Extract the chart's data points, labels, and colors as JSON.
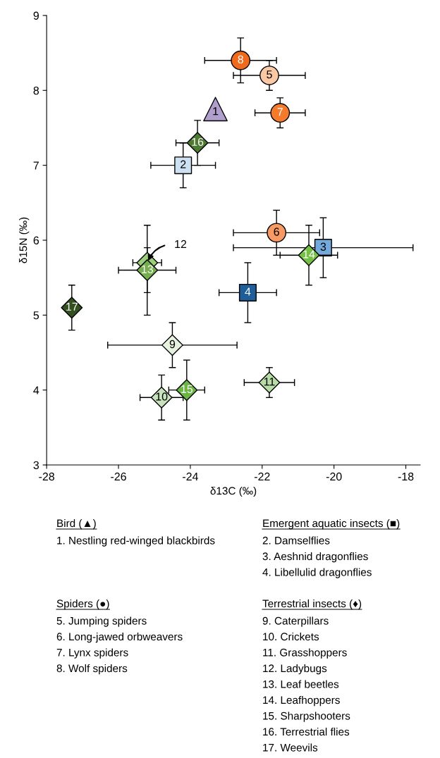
{
  "chart_data": {
    "type": "scatter",
    "xlabel": "δ13C (‰)",
    "ylabel": "δ15N (‰)",
    "xlim": [
      -28,
      -17.6
    ],
    "ylim": [
      3,
      9
    ],
    "xticks": [
      -28,
      -26,
      -24,
      -22,
      -20,
      -18
    ],
    "yticks": [
      3,
      4,
      5,
      6,
      7,
      8,
      9
    ],
    "series": [
      {
        "marker": "triangle",
        "x": [
          -23.3
        ],
        "values": [
          7.75
        ],
        "colors": [
          "#b09fcc"
        ],
        "errors": [
          null
        ],
        "xerrors": [
          null
        ]
      },
      {
        "marker": "square",
        "x": [
          -24.2,
          -20.3,
          -22.4
        ],
        "values": [
          7.0,
          5.9,
          5.3
        ],
        "colors": [
          "#cde1f3",
          "#74a9db",
          "#1f5e96"
        ],
        "errors": [
          0.3,
          0.4,
          0.4
        ],
        "xerrors": [
          0.9,
          2.5,
          0.8
        ]
      },
      {
        "marker": "circle",
        "x": [
          -21.8,
          -21.6,
          -21.5,
          -22.6
        ],
        "values": [
          8.2,
          6.1,
          7.7,
          8.4
        ],
        "colors": [
          "#fbc8a5",
          "#f79a64",
          "#f47a2c",
          "#f06a1e"
        ],
        "errors": [
          0.2,
          0.3,
          0.2,
          0.3
        ],
        "xerrors": [
          1.0,
          1.2,
          0.7,
          1.0
        ]
      },
      {
        "marker": "diamond",
        "x": [
          -24.5,
          -24.8,
          -21.8,
          -25.2,
          -25.2,
          -20.7,
          -24.1,
          -23.8,
          -27.3
        ],
        "values": [
          4.6,
          3.9,
          4.1,
          5.7,
          5.6,
          5.8,
          4.0,
          7.3,
          5.1
        ],
        "colors": [
          "#e6f2de",
          "#c8e2bc",
          "#b8dca6",
          "#9ccf7c",
          "#76ad4f",
          "#74c045",
          "#6cb443",
          "#4f7a34",
          "#34501f"
        ],
        "errors": [
          0.3,
          0.3,
          0.2,
          [
            5.3,
            5.9
          ],
          0.6,
          0.4,
          0.4,
          0.3,
          0.3
        ],
        "xerrors": [
          1.8,
          0.6,
          0.7,
          0.4,
          0.8,
          0.8,
          0.5,
          0.6,
          null
        ]
      }
    ],
    "annotations": [
      "Bird (▲)",
      "1. Nestling red-winged blackbirds",
      "Emergent aquatic insects (■)",
      "2. Damselflies",
      "3. Aeshnid dragonflies",
      "4. Libellulid dragonflies",
      "Spiders (●)",
      "5. Jumping spiders",
      "6. Long-jawed orbweavers",
      "7. Lynx spiders",
      "8. Wolf spiders",
      "Terrestrial insects (♦)",
      "9. Caterpillars",
      "10. Crickets",
      "11. Grasshoppers",
      "12. Ladybugs",
      "13. Leaf beetles",
      "14. Leafhoppers",
      "15. Sharpshooters",
      "16. Terrestrial flies",
      "17. Weevils",
      {
        "text": "1",
        "x": -23.3,
        "y": 7.75
      },
      {
        "text": "2",
        "x": -24.2,
        "y": 7.0
      },
      {
        "text": "3",
        "x": -20.3,
        "y": 5.9
      },
      {
        "text": "4",
        "x": -22.4,
        "y": 5.3
      },
      {
        "text": "5",
        "x": -21.8,
        "y": 8.2
      },
      {
        "text": "6",
        "x": -21.6,
        "y": 6.1
      },
      {
        "text": "7",
        "x": -21.5,
        "y": 7.7
      },
      {
        "text": "8",
        "x": -22.6,
        "y": 8.4
      },
      {
        "text": "9",
        "x": -24.5,
        "y": 4.6
      },
      {
        "text": "10",
        "x": -24.8,
        "y": 3.9
      },
      {
        "text": "11",
        "x": -21.8,
        "y": 4.1
      },
      {
        "text": "12",
        "x": -25.2,
        "y": 5.7
      },
      {
        "text": "13",
        "x": -25.2,
        "y": 5.6
      },
      {
        "text": "14",
        "x": -20.7,
        "y": 5.8
      },
      {
        "text": "15",
        "x": -24.1,
        "y": 4.0
      },
      {
        "text": "16",
        "x": -23.8,
        "y": 7.3
      },
      {
        "text": "17",
        "x": -27.3,
        "y": 5.1
      }
    ]
  }
}
